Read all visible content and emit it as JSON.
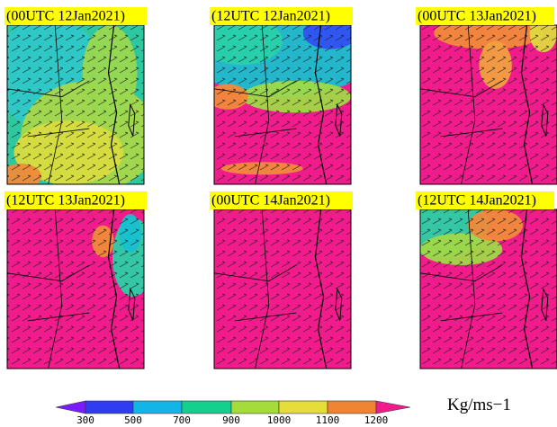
{
  "panels": [
    {
      "title": "(00UTC 12Jan2021)"
    },
    {
      "title": "(12UTC 12Jan2021)"
    },
    {
      "title": "(00UTC 13Jan2021)"
    },
    {
      "title": "(12UTC 13Jan2021)"
    },
    {
      "title": "(00UTC 14Jan2021)"
    },
    {
      "title": "(12UTC 14Jan2021)"
    }
  ],
  "colorbar": {
    "ticks": [
      300,
      500,
      700,
      900,
      1000,
      1100,
      1200
    ],
    "colors": [
      "#7a1cff",
      "#2f3cf2",
      "#12b6e6",
      "#14d08e",
      "#a4dc3c",
      "#e6dc3a",
      "#f08432",
      "#f01c8c"
    ],
    "unit": "Kg/ms−1"
  }
}
